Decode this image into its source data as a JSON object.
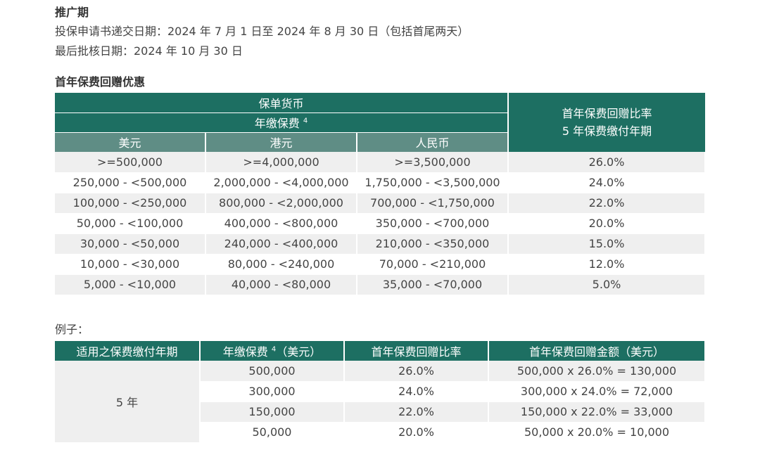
{
  "promo": {
    "title": "推广期",
    "submit_line": "投保申请书递交日期：2024 年 7 月 1 日至 2024 年 8 月 30 日（包括首尾两天）",
    "approve_line": "最后批核日期：2024 年 10 月 30 日"
  },
  "offer": {
    "title": "首年保费回赠优惠",
    "header_currency": "保单货币",
    "header_premium": "年缴保费",
    "footnote": "4",
    "header_rate_1": "首年保费回赠比率",
    "header_rate_2": "5 年保费缴付年期",
    "currencies": [
      "美元",
      "港元",
      "人民币"
    ],
    "rows": [
      [
        ">=500,000",
        ">=4,000,000",
        ">=3,500,000",
        "26.0%"
      ],
      [
        "250,000 - <500,000",
        "2,000,000 - <4,000,000",
        "1,750,000 - <3,500,000",
        "24.0%"
      ],
      [
        "100,000 - <250,000",
        "800,000 - <2,000,000",
        "700,000 - <1,750,000",
        "22.0%"
      ],
      [
        "50,000 - <100,000",
        "400,000 - <800,000",
        "350,000 - <700,000",
        "20.0%"
      ],
      [
        "30,000 - <50,000",
        "240,000 - <400,000",
        "210,000 - <350,000",
        "15.0%"
      ],
      [
        "10,000 - <30,000",
        "80,000 - <240,000",
        "70,000 - <210,000",
        "12.0%"
      ],
      [
        "5,000 - <10,000",
        "40,000 - <80,000",
        "35,000 - <70,000",
        "5.0%"
      ]
    ]
  },
  "example": {
    "label": "例子：",
    "headers": [
      "适用之保费缴付年期",
      "年缴保费",
      "（美元）",
      "首年保费回赠比率",
      "首年保费回赠金额（美元）"
    ],
    "footnote": "4",
    "term": "5 年",
    "rows": [
      [
        "500,000",
        "26.0%",
        "500,000 x 26.0% = 130,000"
      ],
      [
        "300,000",
        "24.0%",
        "300,000 x 24.0% = 72,000"
      ],
      [
        "150,000",
        "22.0%",
        "150,000 x 22.0% = 33,000"
      ],
      [
        "50,000",
        "20.0%",
        "50,000 x 20.0% = 10,000"
      ]
    ]
  }
}
